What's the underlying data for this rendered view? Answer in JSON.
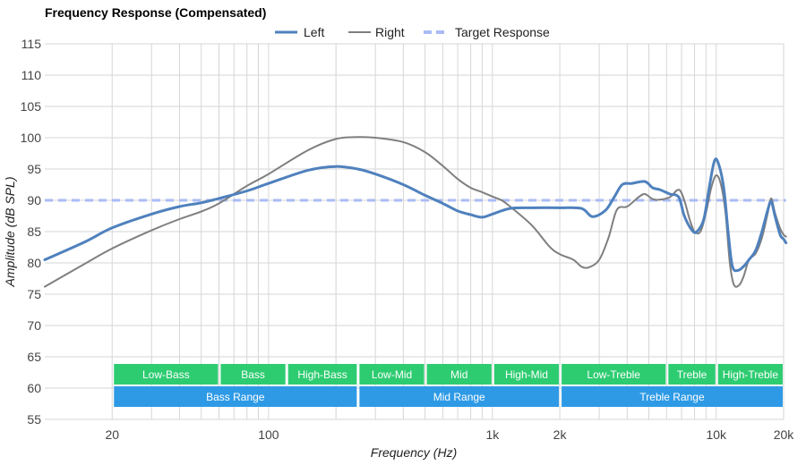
{
  "chart_data": {
    "type": "line",
    "title": "Frequency Response (Compensated)",
    "xlabel": "Frequency (Hz)",
    "ylabel": "Amplitude (dB SPL)",
    "xscale": "log",
    "xlim": [
      10,
      20000
    ],
    "ylim": [
      55,
      115
    ],
    "grid": true,
    "legend_position": "top-center",
    "x_ticks": [
      {
        "value": 20,
        "label": "20"
      },
      {
        "value": 100,
        "label": "100"
      },
      {
        "value": 1000,
        "label": "1k"
      },
      {
        "value": 2000,
        "label": "2k"
      },
      {
        "value": 10000,
        "label": "10k"
      },
      {
        "value": 20000,
        "label": "20k"
      }
    ],
    "y_ticks": [
      55,
      60,
      65,
      70,
      75,
      80,
      85,
      90,
      95,
      100,
      105,
      110,
      115
    ],
    "series": [
      {
        "name": "Left",
        "color": "#4f81bd",
        "style": "solid",
        "points": [
          [
            10,
            80.5
          ],
          [
            15,
            83.3
          ],
          [
            20,
            85.6
          ],
          [
            30,
            87.8
          ],
          [
            40,
            89.0
          ],
          [
            50,
            89.6
          ],
          [
            60,
            90.3
          ],
          [
            80,
            91.5
          ],
          [
            100,
            92.7
          ],
          [
            150,
            94.8
          ],
          [
            200,
            95.4
          ],
          [
            250,
            95.0
          ],
          [
            300,
            94.2
          ],
          [
            400,
            92.5
          ],
          [
            500,
            90.8
          ],
          [
            600,
            89.5
          ],
          [
            700,
            88.3
          ],
          [
            800,
            87.7
          ],
          [
            900,
            87.3
          ],
          [
            1000,
            87.8
          ],
          [
            1200,
            88.7
          ],
          [
            1500,
            88.8
          ],
          [
            2000,
            88.8
          ],
          [
            2500,
            88.7
          ],
          [
            2800,
            87.4
          ],
          [
            3200,
            88.4
          ],
          [
            3500,
            90.5
          ],
          [
            3800,
            92.5
          ],
          [
            4200,
            92.7
          ],
          [
            4800,
            93.0
          ],
          [
            5200,
            92.0
          ],
          [
            5600,
            91.7
          ],
          [
            6200,
            91.0
          ],
          [
            6800,
            90.5
          ],
          [
            7200,
            87.5
          ],
          [
            7800,
            85.2
          ],
          [
            8200,
            85.0
          ],
          [
            8800,
            87.0
          ],
          [
            9300,
            92.0
          ],
          [
            9800,
            96.2
          ],
          [
            10200,
            96.0
          ],
          [
            10800,
            92.0
          ],
          [
            11300,
            85.0
          ],
          [
            11800,
            79.5
          ],
          [
            12500,
            78.8
          ],
          [
            13300,
            79.5
          ],
          [
            14000,
            80.5
          ],
          [
            15000,
            82.0
          ],
          [
            16000,
            85.0
          ],
          [
            17000,
            88.5
          ],
          [
            17600,
            89.8
          ],
          [
            18300,
            87.5
          ],
          [
            19300,
            84.5
          ],
          [
            20000,
            83.8
          ],
          [
            20500,
            83.2
          ]
        ]
      },
      {
        "name": "Right",
        "color": "#7f7f7f",
        "style": "solid",
        "points": [
          [
            10,
            76.2
          ],
          [
            15,
            79.8
          ],
          [
            20,
            82.3
          ],
          [
            30,
            85.2
          ],
          [
            40,
            87.0
          ],
          [
            50,
            88.2
          ],
          [
            60,
            89.5
          ],
          [
            80,
            92.3
          ],
          [
            100,
            94.2
          ],
          [
            150,
            98.0
          ],
          [
            200,
            99.8
          ],
          [
            250,
            100.1
          ],
          [
            300,
            100.0
          ],
          [
            400,
            99.3
          ],
          [
            500,
            97.7
          ],
          [
            600,
            95.5
          ],
          [
            700,
            93.4
          ],
          [
            800,
            92.0
          ],
          [
            900,
            91.3
          ],
          [
            1000,
            90.6
          ],
          [
            1100,
            90.0
          ],
          [
            1200,
            89.0
          ],
          [
            1500,
            86.0
          ],
          [
            1800,
            82.6
          ],
          [
            2000,
            81.4
          ],
          [
            2300,
            80.5
          ],
          [
            2500,
            79.4
          ],
          [
            2700,
            79.3
          ],
          [
            3000,
            80.5
          ],
          [
            3300,
            84.0
          ],
          [
            3600,
            88.5
          ],
          [
            4000,
            89.0
          ],
          [
            4500,
            90.5
          ],
          [
            4800,
            91.0
          ],
          [
            5200,
            90.2
          ],
          [
            5600,
            90.1
          ],
          [
            6200,
            90.5
          ],
          [
            6800,
            91.7
          ],
          [
            7200,
            90.0
          ],
          [
            7600,
            87.0
          ],
          [
            8000,
            85.0
          ],
          [
            8500,
            85.0
          ],
          [
            9000,
            88.0
          ],
          [
            9500,
            92.0
          ],
          [
            10000,
            94.0
          ],
          [
            10500,
            92.5
          ],
          [
            11000,
            88.0
          ],
          [
            11500,
            80.0
          ],
          [
            12000,
            76.5
          ],
          [
            12700,
            76.5
          ],
          [
            13300,
            78.0
          ],
          [
            14000,
            80.5
          ],
          [
            15000,
            81.5
          ],
          [
            16000,
            84.0
          ],
          [
            17000,
            88.0
          ],
          [
            17600,
            90.3
          ],
          [
            18300,
            88.0
          ],
          [
            19300,
            85.5
          ],
          [
            20000,
            84.5
          ],
          [
            20500,
            84.2
          ]
        ]
      },
      {
        "name": "Target Response",
        "color": "#aabbf5",
        "style": "dashed",
        "points": [
          [
            10,
            90
          ],
          [
            20500,
            90
          ]
        ]
      }
    ],
    "bands": [
      {
        "label": "Low-Bass",
        "from": 20,
        "to": 60,
        "row": 1,
        "color": "#2ecc71"
      },
      {
        "label": "Bass",
        "from": 60,
        "to": 120,
        "row": 1,
        "color": "#2ecc71"
      },
      {
        "label": "High-Bass",
        "from": 120,
        "to": 250,
        "row": 1,
        "color": "#2ecc71"
      },
      {
        "label": "Low-Mid",
        "from": 250,
        "to": 500,
        "row": 1,
        "color": "#2ecc71"
      },
      {
        "label": "Mid",
        "from": 500,
        "to": 1000,
        "row": 1,
        "color": "#2ecc71"
      },
      {
        "label": "High-Mid",
        "from": 1000,
        "to": 2000,
        "row": 1,
        "color": "#2ecc71"
      },
      {
        "label": "Low-Treble",
        "from": 2000,
        "to": 6000,
        "row": 1,
        "color": "#2ecc71"
      },
      {
        "label": "Treble",
        "from": 6000,
        "to": 10000,
        "row": 1,
        "color": "#2ecc71"
      },
      {
        "label": "High-Treble",
        "from": 10000,
        "to": 20000,
        "row": 1,
        "color": "#2ecc71"
      },
      {
        "label": "Bass Range",
        "from": 20,
        "to": 250,
        "row": 2,
        "color": "#2e9ae6"
      },
      {
        "label": "Mid Range",
        "from": 250,
        "to": 2000,
        "row": 2,
        "color": "#2e9ae6"
      },
      {
        "label": "Treble Range",
        "from": 2000,
        "to": 20000,
        "row": 2,
        "color": "#2e9ae6"
      }
    ]
  }
}
